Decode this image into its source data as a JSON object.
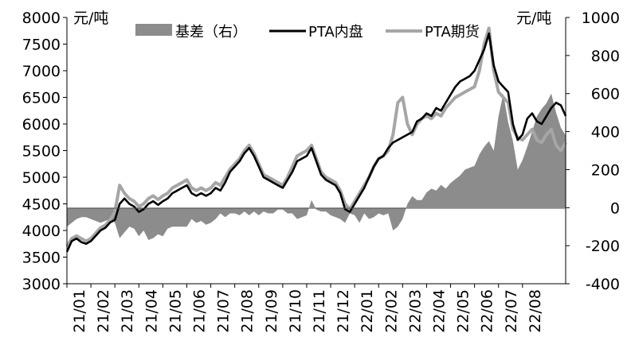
{
  "chart_data": {
    "type": "line",
    "units": {
      "left": "元/吨",
      "right": "元/吨"
    },
    "legend": {
      "position": "top",
      "items": [
        {
          "name": "基差（右）",
          "kind": "area",
          "color": "#8c8c8c"
        },
        {
          "name": "PTA内盘",
          "kind": "line",
          "color": "#000000"
        },
        {
          "name": "PTA期货",
          "kind": "line",
          "color": "#a6a6a6"
        }
      ]
    },
    "x_labels": [
      "21/01",
      "21/02",
      "21/03",
      "21/04",
      "21/05",
      "21/06",
      "21/07",
      "21/08",
      "21/09",
      "21/10",
      "21/11",
      "21/12",
      "22/01",
      "22/02",
      "22/03",
      "22/04",
      "22/05",
      "22/06",
      "22/07",
      "22/08"
    ],
    "x_range": [
      0,
      20.8
    ],
    "y_left": {
      "min": 3000,
      "max": 8000,
      "ticks": [
        3000,
        3500,
        4000,
        4500,
        5000,
        5500,
        6000,
        6500,
        7000,
        7500,
        8000
      ]
    },
    "y_right": {
      "min": -400,
      "max": 1000,
      "ticks": [
        -400,
        -200,
        0,
        200,
        400,
        600,
        800,
        1000
      ]
    },
    "grid": false,
    "series": [
      {
        "name": "PTA内盘",
        "axis": "left",
        "color": "#000000",
        "x": [
          0,
          0.2,
          0.4,
          0.6,
          0.8,
          1.0,
          1.2,
          1.4,
          1.6,
          1.8,
          2.0,
          2.2,
          2.4,
          2.6,
          2.8,
          3.0,
          3.2,
          3.4,
          3.6,
          3.8,
          4.0,
          4.2,
          4.4,
          4.6,
          4.8,
          5.0,
          5.2,
          5.4,
          5.6,
          5.8,
          6.0,
          6.2,
          6.4,
          6.6,
          6.8,
          7.0,
          7.2,
          7.4,
          7.6,
          7.8,
          8.0,
          8.2,
          8.4,
          8.6,
          8.8,
          9.0,
          9.2,
          9.4,
          9.6,
          9.8,
          10.0,
          10.2,
          10.4,
          10.6,
          10.8,
          11.0,
          11.2,
          11.4,
          11.6,
          11.8,
          12.0,
          12.2,
          12.4,
          12.6,
          12.8,
          13.0,
          13.2,
          13.4,
          13.6,
          13.8,
          14.0,
          14.2,
          14.4,
          14.6,
          14.8,
          15.0,
          15.2,
          15.4,
          15.6,
          15.8,
          16.0,
          16.2,
          16.4,
          16.6,
          16.8,
          17.0,
          17.2,
          17.4,
          17.6,
          17.8,
          18.0,
          18.2,
          18.4,
          18.6,
          18.8,
          19.0,
          19.2,
          19.4,
          19.6,
          19.8,
          20.0,
          20.2,
          20.4,
          20.6,
          20.8
        ],
        "values": [
          3600,
          3800,
          3850,
          3780,
          3750,
          3800,
          3900,
          4000,
          4050,
          4150,
          4200,
          4500,
          4600,
          4500,
          4450,
          4350,
          4400,
          4500,
          4550,
          4480,
          4550,
          4600,
          4700,
          4750,
          4800,
          4850,
          4700,
          4650,
          4700,
          4650,
          4700,
          4800,
          4750,
          4900,
          5100,
          5200,
          5300,
          5450,
          5550,
          5400,
          5200,
          5000,
          4950,
          4900,
          4850,
          4800,
          4950,
          5100,
          5300,
          5350,
          5400,
          5550,
          5300,
          5050,
          4950,
          4900,
          4850,
          4700,
          4400,
          4350,
          4500,
          4650,
          4800,
          5000,
          5200,
          5350,
          5400,
          5550,
          5650,
          5700,
          5750,
          5800,
          5850,
          6050,
          6100,
          6200,
          6150,
          6300,
          6250,
          6400,
          6550,
          6700,
          6800,
          6850,
          6900,
          7000,
          7200,
          7400,
          7700,
          7100,
          6800,
          6700,
          6600,
          6000,
          5700,
          5800,
          6100,
          6200,
          6050,
          6000,
          6150,
          6300,
          6400,
          6350,
          6150
        ]
      },
      {
        "name": "PTA期货",
        "axis": "left",
        "color": "#a6a6a6",
        "x": [
          0,
          0.2,
          0.4,
          0.6,
          0.8,
          1.0,
          1.2,
          1.4,
          1.6,
          1.8,
          2.0,
          2.2,
          2.4,
          2.6,
          2.8,
          3.0,
          3.2,
          3.4,
          3.6,
          3.8,
          4.0,
          4.2,
          4.4,
          4.6,
          4.8,
          5.0,
          5.2,
          5.4,
          5.6,
          5.8,
          6.0,
          6.2,
          6.4,
          6.6,
          6.8,
          7.0,
          7.2,
          7.4,
          7.6,
          7.8,
          8.0,
          8.2,
          8.4,
          8.6,
          8.8,
          9.0,
          9.2,
          9.4,
          9.6,
          9.8,
          10.0,
          10.2,
          10.4,
          10.6,
          10.8,
          11.0,
          11.2,
          11.4,
          11.6,
          11.8,
          12.0,
          12.2,
          12.4,
          12.6,
          12.8,
          13.0,
          13.2,
          13.4,
          13.6,
          13.8,
          14.0,
          14.2,
          14.4,
          14.6,
          14.8,
          15.0,
          15.2,
          15.4,
          15.6,
          15.8,
          16.0,
          16.2,
          16.4,
          16.6,
          16.8,
          17.0,
          17.2,
          17.4,
          17.6,
          17.8,
          18.0,
          18.2,
          18.4,
          18.6,
          18.8,
          19.0,
          19.2,
          19.4,
          19.6,
          19.8,
          20.0,
          20.2,
          20.4,
          20.6,
          20.8
        ],
        "values": [
          3700,
          3850,
          3900,
          3850,
          3800,
          3850,
          3950,
          4050,
          4100,
          4200,
          4350,
          4850,
          4700,
          4600,
          4550,
          4450,
          4500,
          4600,
          4650,
          4580,
          4650,
          4700,
          4800,
          4850,
          4900,
          4950,
          4800,
          4750,
          4800,
          4750,
          4800,
          4900,
          4850,
          5000,
          5150,
          5250,
          5350,
          5500,
          5600,
          5450,
          5250,
          5050,
          5000,
          4950,
          4900,
          4850,
          5000,
          5200,
          5400,
          5450,
          5500,
          5600,
          5350,
          5100,
          5000,
          4950,
          4900,
          4750,
          4500,
          4400,
          4550,
          4700,
          4850,
          5000,
          5200,
          5350,
          5400,
          5500,
          5800,
          6400,
          6500,
          6000,
          5800,
          6000,
          6100,
          6150,
          6100,
          6200,
          6150,
          6300,
          6400,
          6500,
          6550,
          6600,
          6650,
          6700,
          7000,
          7500,
          7800,
          7000,
          6600,
          6500,
          6400,
          5900,
          5750,
          5700,
          5800,
          5900,
          5700,
          5650,
          5800,
          5900,
          5600,
          5500,
          5650
        ]
      },
      {
        "name": "基差（右）",
        "axis": "right",
        "color": "#8c8c8c",
        "x": [
          0,
          0.2,
          0.4,
          0.6,
          0.8,
          1.0,
          1.2,
          1.4,
          1.6,
          1.8,
          2.0,
          2.2,
          2.4,
          2.6,
          2.8,
          3.0,
          3.2,
          3.4,
          3.6,
          3.8,
          4.0,
          4.2,
          4.4,
          4.6,
          4.8,
          5.0,
          5.2,
          5.4,
          5.6,
          5.8,
          6.0,
          6.2,
          6.4,
          6.6,
          6.8,
          7.0,
          7.2,
          7.4,
          7.6,
          7.8,
          8.0,
          8.2,
          8.4,
          8.6,
          8.8,
          9.0,
          9.2,
          9.4,
          9.6,
          9.8,
          10.0,
          10.2,
          10.4,
          10.6,
          10.8,
          11.0,
          11.2,
          11.4,
          11.6,
          11.8,
          12.0,
          12.2,
          12.4,
          12.6,
          12.8,
          13.0,
          13.2,
          13.4,
          13.6,
          13.8,
          14.0,
          14.2,
          14.4,
          14.6,
          14.8,
          15.0,
          15.2,
          15.4,
          15.6,
          15.8,
          16.0,
          16.2,
          16.4,
          16.6,
          16.8,
          17.0,
          17.2,
          17.4,
          17.6,
          17.8,
          18.0,
          18.2,
          18.4,
          18.6,
          18.8,
          19.0,
          19.2,
          19.4,
          19.6,
          19.8,
          20.0,
          20.2,
          20.4,
          20.6,
          20.8
        ],
        "values": [
          -100,
          -80,
          -60,
          -50,
          -50,
          -60,
          -70,
          -80,
          -70,
          -60,
          -80,
          -160,
          -130,
          -100,
          -110,
          -150,
          -120,
          -170,
          -160,
          -140,
          -150,
          -110,
          -100,
          -100,
          -100,
          -100,
          -60,
          -80,
          -70,
          -90,
          -80,
          -60,
          -30,
          -50,
          -30,
          -30,
          -40,
          -20,
          -40,
          -20,
          -40,
          -20,
          -30,
          -30,
          -10,
          -10,
          -30,
          -30,
          -60,
          -50,
          -40,
          40,
          -10,
          -20,
          -20,
          -40,
          -50,
          -60,
          -80,
          -30,
          -40,
          -80,
          -30,
          -60,
          -50,
          -30,
          -40,
          -30,
          -120,
          -100,
          -60,
          20,
          60,
          40,
          40,
          80,
          100,
          90,
          120,
          100,
          130,
          150,
          170,
          200,
          210,
          220,
          280,
          320,
          350,
          300,
          480,
          600,
          450,
          350,
          200,
          250,
          320,
          400,
          480,
          520,
          550,
          600,
          500,
          420,
          380
        ]
      }
    ]
  }
}
